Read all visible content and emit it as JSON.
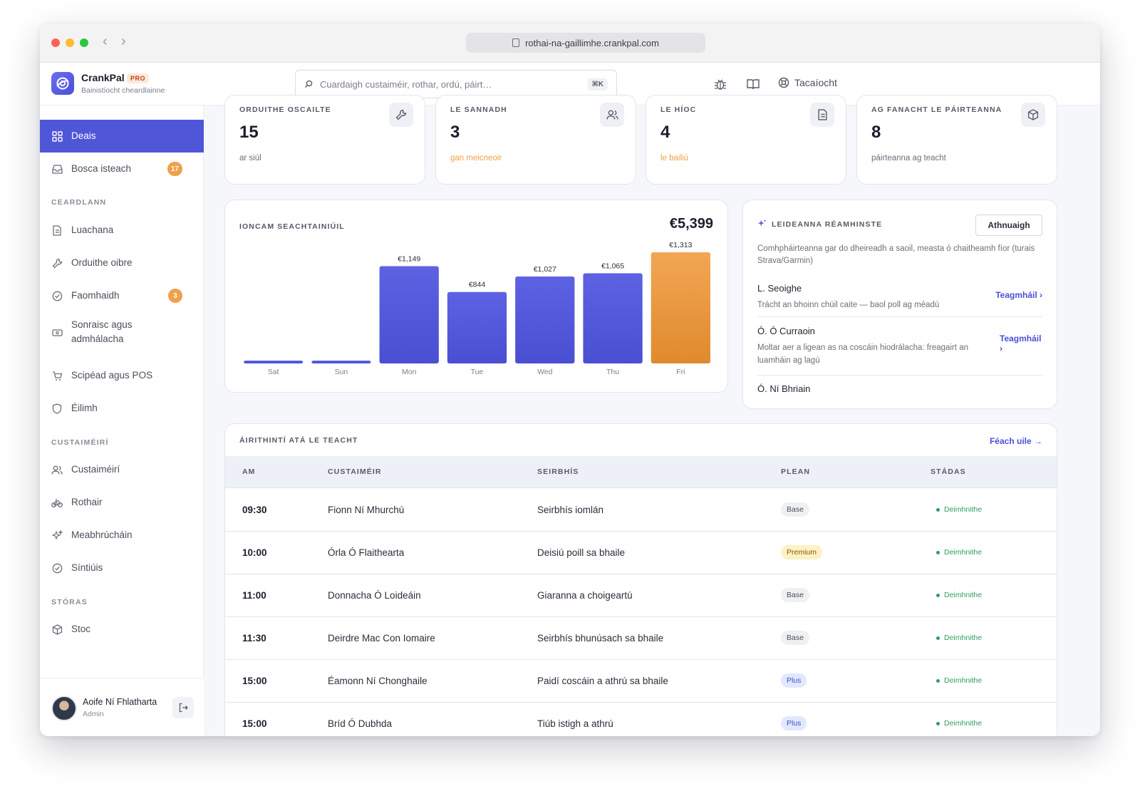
{
  "browser": {
    "url": "rothai-na-gaillimhe.crankpal.com"
  },
  "brand": {
    "name": "CrankPal",
    "badge": "PRO",
    "subtitle": "Bainistíocht cheardlainne"
  },
  "search": {
    "placeholder": "Cuardaigh custaiméir, rothar, ordú, páirt…",
    "shortcut": "⌘K"
  },
  "header": {
    "support_label": "Tacaíocht"
  },
  "sidebar": {
    "items": [
      {
        "label": "Deais",
        "icon": "grid-icon",
        "active": true
      },
      {
        "label": "Bosca isteach",
        "icon": "inbox-icon",
        "badge": "17"
      }
    ],
    "sections": [
      {
        "title": "CEARDLANN",
        "items": [
          {
            "label": "Luachana",
            "icon": "document-icon"
          },
          {
            "label": "Orduithe oibre",
            "icon": "wrench-icon"
          },
          {
            "label": "Faomhaidh",
            "icon": "check-circle-icon",
            "badge": "3"
          },
          {
            "label": "Sonraisc agus admhálacha",
            "icon": "receipt-icon"
          },
          {
            "label": "Scipéad agus POS",
            "icon": "cart-icon"
          },
          {
            "label": "Éilimh",
            "icon": "shield-icon"
          }
        ]
      },
      {
        "title": "CUSTAIMÉIRÍ",
        "items": [
          {
            "label": "Custaiméirí",
            "icon": "users-icon"
          },
          {
            "label": "Rothair",
            "icon": "bike-icon"
          },
          {
            "label": "Meabhrúcháin",
            "icon": "sparkle-icon"
          },
          {
            "label": "Síntiúis",
            "icon": "check-circle-icon"
          }
        ]
      },
      {
        "title": "STÓRAS",
        "items": [
          {
            "label": "Stoc",
            "icon": "box-icon"
          }
        ]
      }
    ],
    "user": {
      "name": "Aoife Ní Fhlatharta",
      "role": "Admin"
    }
  },
  "stats": [
    {
      "title": "ORDUITHE OSCAILTE",
      "value": "15",
      "sub": "ar siúl",
      "icon": "wrench-icon",
      "warn": false
    },
    {
      "title": "LE SANNADH",
      "value": "3",
      "sub": "gan meicneoir",
      "icon": "users-icon",
      "warn": true
    },
    {
      "title": "LE HÍOC",
      "value": "4",
      "sub": "le bailiú",
      "icon": "document-icon",
      "warn": true
    },
    {
      "title": "AG FANACHT LE PÁIRTEANNA",
      "value": "8",
      "sub": "páirteanna ag teacht",
      "icon": "box-icon",
      "warn": false
    }
  ],
  "revenue": {
    "title": "IONCAM SEACHTAINIÚIL",
    "total": "€5,399",
    "colors": {
      "bar": "#5a5fe0",
      "highlight": "#f0a04a"
    }
  },
  "chart_data": {
    "type": "bar",
    "categories": [
      "Sat",
      "Sun",
      "Mon",
      "Tue",
      "Wed",
      "Thu",
      "Fri"
    ],
    "values": [
      0,
      0,
      1149,
      844,
      1027,
      1065,
      1313
    ],
    "labels": [
      "",
      "",
      "€1,149",
      "€844",
      "€1,027",
      "€1,065",
      "€1,313"
    ],
    "highlight_index": 6,
    "title": "IONCAM SEACHTAINIÚIL",
    "xlabel": "",
    "ylabel": "",
    "ylim": [
      0,
      1313
    ],
    "grid": false
  },
  "predictions": {
    "title": "LEIDEANNA RÉAMHINSTE",
    "refresh_label": "Athnuaigh",
    "description": "Comhpháirteanna gar do dheireadh a saoil, measta ó chaitheamh fíor (turais Strava/Garmin)",
    "items": [
      {
        "name": "L. Seoighe",
        "text": "Trácht an bhoinn chúil caite — baol poll ag méadú",
        "link": "Teagmháil ›"
      },
      {
        "name": "Ó. Ó Curraoin",
        "text": "Moltar aer a ligean as na coscáin hiodrálacha: freagairt an luamháin ag lagú",
        "link": "Teagmháil ›"
      },
      {
        "name": "Ó. Ní Bhriain",
        "text": "",
        "link": ""
      }
    ]
  },
  "schedule": {
    "title": "ÁIRITHINTÍ ATÁ LE TEACHT",
    "view_all": "Féach uile →",
    "columns": [
      "AM",
      "CUSTAIMÉIR",
      "SEIRBHÍS",
      "PLEAN",
      "STÁDAS"
    ],
    "rows": [
      {
        "time": "09:30",
        "customer": "Fionn Ní Mhurchú",
        "service": "Seirbhís iomlán",
        "plan": "Base",
        "status": "Deimhnithe"
      },
      {
        "time": "10:00",
        "customer": "Órla Ó Flaithearta",
        "service": "Deisiú poill sa bhaile",
        "plan": "Premium",
        "status": "Deimhnithe"
      },
      {
        "time": "11:00",
        "customer": "Donnacha Ó Loideáin",
        "service": "Giaranna a choigeartú",
        "plan": "Base",
        "status": "Deimhnithe"
      },
      {
        "time": "11:30",
        "customer": "Deirdre Mac Con Iomaire",
        "service": "Seirbhís bhunúsach sa bhaile",
        "plan": "Base",
        "status": "Deimhnithe"
      },
      {
        "time": "15:00",
        "customer": "Éamonn Ní Chonghaile",
        "service": "Paidí coscáin a athrú sa bhaile",
        "plan": "Plus",
        "status": "Deimhnithe"
      },
      {
        "time": "15:00",
        "customer": "Bríd Ó Dubhda",
        "service": "Tiúb istigh a athrú",
        "plan": "Plus",
        "status": "Deimhnithe"
      }
    ]
  }
}
